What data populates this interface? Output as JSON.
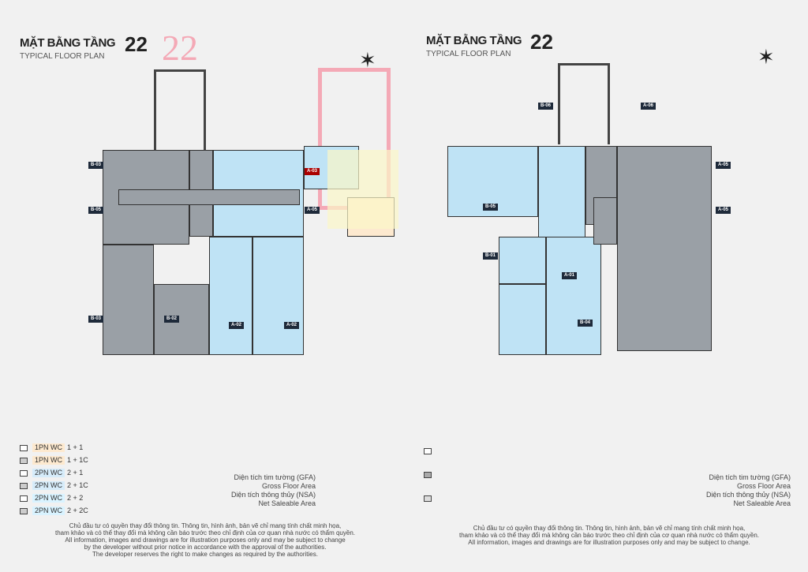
{
  "left_plan": {
    "title": "MẶT BẰNG TẦNG",
    "floor_number": "22",
    "subtitle": "TYPICAL FLOOR PLAN",
    "highlight_number": "22",
    "unit_tags": [
      "B-03",
      "A-03",
      "B-05",
      "A-05",
      "B-03",
      "B-02",
      "A-02",
      "A-02"
    ],
    "legend": [
      {
        "label": "1PN WC",
        "sub": "1 + 1",
        "color": "#fde9cf"
      },
      {
        "label": "1PN WC",
        "sub": "1 + 1C",
        "color": "#fde9cf"
      },
      {
        "label": "2PN WC",
        "sub": "2 + 1",
        "color": "#d6ecfa"
      },
      {
        "label": "2PN WC",
        "sub": "2 + 1C",
        "color": "#d6ecfa"
      },
      {
        "label": "2PN WC",
        "sub": "2 + 2",
        "color": "#d9f3ff"
      },
      {
        "label": "2PN WC",
        "sub": "2 + 2C",
        "color": "#d9f3ff"
      }
    ],
    "notes": [
      "Diện tích tim tường (GFA)",
      "Gross Floor Area",
      "Diện tích thông thủy (NSA)",
      "Net Saleable Area"
    ],
    "footer": [
      "Chủ đầu tư có quyền thay đổi thông tin. Thông tin, hình ảnh, bản vẽ chỉ mang tính chất minh họa,",
      "tham khảo và có thể thay đổi mà không cần báo trước theo chỉ định của cơ quan nhà nước có thẩm quyền.",
      "All information, images and drawings are for illustration purposes only and may be subject to change",
      "by the developer without prior notice in accordance with the approval of the authorities.",
      "The developer reserves the right to make changes as required by the authorities."
    ]
  },
  "right_plan": {
    "title": "MẶT BẰNG TẦNG",
    "floor_number": "22",
    "subtitle": "TYPICAL FLOOR PLAN",
    "unit_tags": [
      "B-06",
      "A-06",
      "A-05",
      "B-05",
      "A-05",
      "B-01",
      "A-01",
      "B-04"
    ],
    "notes": [
      "Diện tích tim tường (GFA)",
      "Gross Floor Area",
      "Diện tích thông thủy (NSA)",
      "Net Saleable Area"
    ],
    "footer": [
      "Chủ đầu tư có quyền thay đổi thông tin. Thông tin, hình ảnh, bản vẽ chỉ mang tính chất minh họa,",
      "tham khảo và có thể thay đổi mà không cần báo trước theo chỉ định của cơ quan nhà nước có thẩm quyền.",
      "All information, images and drawings are for illustration purposes only and may be subject to change."
    ]
  },
  "colors": {
    "highlight": "#f4a9b6",
    "unit_blue": "#bfe3f5",
    "unit_dark": "#9aa0a6",
    "unit_beige": "#fde9cf",
    "unit_yellow": "#f6f3b8"
  },
  "icons": {
    "compass": "north-arrow-icon"
  }
}
